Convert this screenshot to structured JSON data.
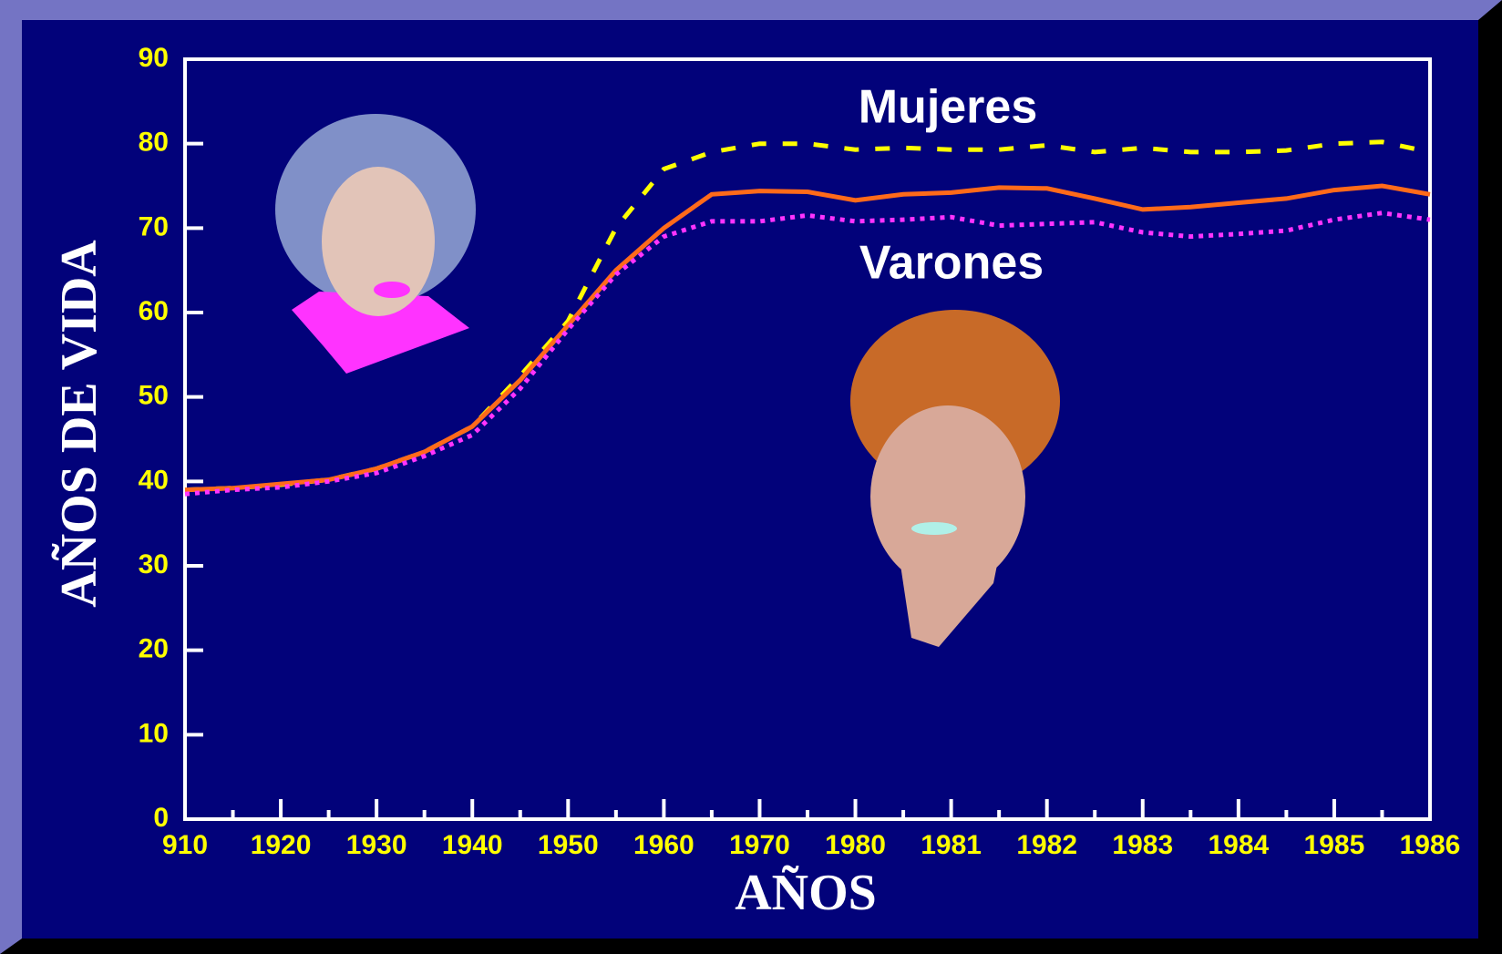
{
  "chart_data": {
    "type": "line",
    "ylabel": "AÑOS DE VIDA",
    "xlabel": "AÑOS",
    "annotations": [
      "Mujeres",
      "Varones"
    ],
    "categories": [
      "910",
      null,
      "1920",
      null,
      "1930",
      null,
      "1940",
      null,
      "1950",
      null,
      "1960",
      null,
      "1970",
      null,
      "1980",
      null,
      "1981",
      null,
      "1982",
      null,
      "1983",
      null,
      "1984",
      null,
      "1985",
      null,
      "1986"
    ],
    "series": [
      {
        "color": "#ffff00",
        "style": "dashed",
        "values": [
          39,
          39.2,
          39.6,
          40.2,
          41.5,
          43.5,
          46.5,
          52.5,
          59,
          70,
          77,
          79,
          80,
          80,
          79.3,
          79.5,
          79.3,
          79.3,
          79.8,
          79,
          79.5,
          79,
          79,
          79.2,
          80,
          80.2,
          79
        ]
      },
      {
        "color": "#ff6a1a",
        "style": "solid",
        "values": [
          39,
          39.2,
          39.7,
          40.2,
          41.5,
          43.5,
          46.5,
          52,
          58.5,
          65,
          70,
          74,
          74.4,
          74.3,
          73.3,
          74,
          74.2,
          74.8,
          74.7,
          73.5,
          72.2,
          72.5,
          73,
          73.5,
          74.5,
          75,
          74
        ]
      },
      {
        "color": "#ff33ff",
        "style": "dotted",
        "values": [
          38.5,
          39,
          39.3,
          40,
          41,
          43,
          45.5,
          51,
          58,
          64.5,
          69,
          70.8,
          70.8,
          71.5,
          70.8,
          71,
          71.3,
          70.3,
          70.5,
          70.7,
          69.5,
          69,
          69.3,
          69.7,
          71,
          71.8,
          71
        ]
      }
    ],
    "ylim": [
      0,
      90
    ],
    "yticks": [
      0,
      10,
      20,
      30,
      40,
      50,
      60,
      70,
      80,
      90
    ]
  }
}
